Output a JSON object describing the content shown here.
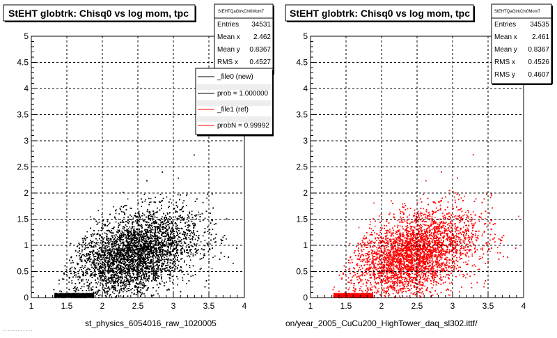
{
  "page": {
    "footer_text": "- - - - - - - - - - - -"
  },
  "panels": [
    {
      "title": "StEHT globtrk: Chisq0 vs log mom, tpc",
      "xlabel": "st_physics_6054016_raw_1020005",
      "stats": {
        "name": "StEHTQaGtrkChi0Mom7",
        "rows": [
          {
            "label": "Entries",
            "value": "34531"
          },
          {
            "label": "Mean x",
            "value": "2.462"
          },
          {
            "label": "Mean y",
            "value": "0.8367"
          },
          {
            "label": "RMS x",
            "value": "0.4527"
          }
        ]
      },
      "legend": [
        {
          "label": "_file0 (new)",
          "color": "#000000"
        },
        {
          "label": "prob = 1.000000",
          "color": "#000000"
        },
        {
          "label": "_file1 (ref)",
          "color": "#ff0000"
        },
        {
          "label": "probN = 0.99992",
          "color": "#ff0000"
        }
      ]
    },
    {
      "title": "StEHT globtrk: Chisq0 vs log mom, tpc",
      "xlabel": "on/year_2005_CuCu200_HighTower_daq_sl302.ittf/",
      "stats": {
        "name": "StEHTQaGtrkChi0Mom7",
        "rows": [
          {
            "label": "Entries",
            "value": "34535"
          },
          {
            "label": "Mean x",
            "value": "2.461"
          },
          {
            "label": "Mean y",
            "value": "0.8367"
          },
          {
            "label": "RMS x",
            "value": "0.4526"
          },
          {
            "label": "RMS y",
            "value": "0.4607"
          }
        ]
      }
    }
  ],
  "chart_data": [
    {
      "type": "scatter",
      "title": "StEHT globtrk: Chisq0 vs log mom, tpc",
      "xlabel": "st_physics_6054016_raw_1020005",
      "ylabel": "",
      "xlim": [
        1,
        4
      ],
      "ylim": [
        0,
        5
      ],
      "xticks": [
        "1",
        "1.5",
        "2",
        "2.5",
        "3",
        "3.5",
        "4"
      ],
      "yticks": [
        "0",
        "0.5",
        "1",
        "1.5",
        "2",
        "2.5",
        "3",
        "3.5",
        "4",
        "4.5",
        "5"
      ],
      "grid": true,
      "marker_color": "#000000",
      "series": [
        {
          "name": "_file0 (new)",
          "entries": 34531,
          "mean_x": 2.462,
          "mean_y": 0.8367,
          "rms_x": 0.4527
        }
      ]
    },
    {
      "type": "scatter",
      "title": "StEHT globtrk: Chisq0 vs log mom, tpc",
      "xlabel": "on/year_2005_CuCu200_HighTower_daq_sl302.ittf/",
      "ylabel": "",
      "xlim": [
        1,
        4
      ],
      "ylim": [
        0,
        5
      ],
      "xticks": [
        "1",
        "1.5",
        "2",
        "2.5",
        "3",
        "3.5",
        "4"
      ],
      "yticks": [
        "0",
        "0.5",
        "1",
        "1.5",
        "2",
        "2.5",
        "3",
        "3.5",
        "4",
        "4.5",
        "5"
      ],
      "grid": true,
      "marker_color": "#ff0000",
      "series": [
        {
          "name": "_file1 (ref)",
          "entries": 34535,
          "mean_x": 2.461,
          "mean_y": 0.8367,
          "rms_x": 0.4526,
          "rms_y": 0.4607
        }
      ]
    }
  ]
}
